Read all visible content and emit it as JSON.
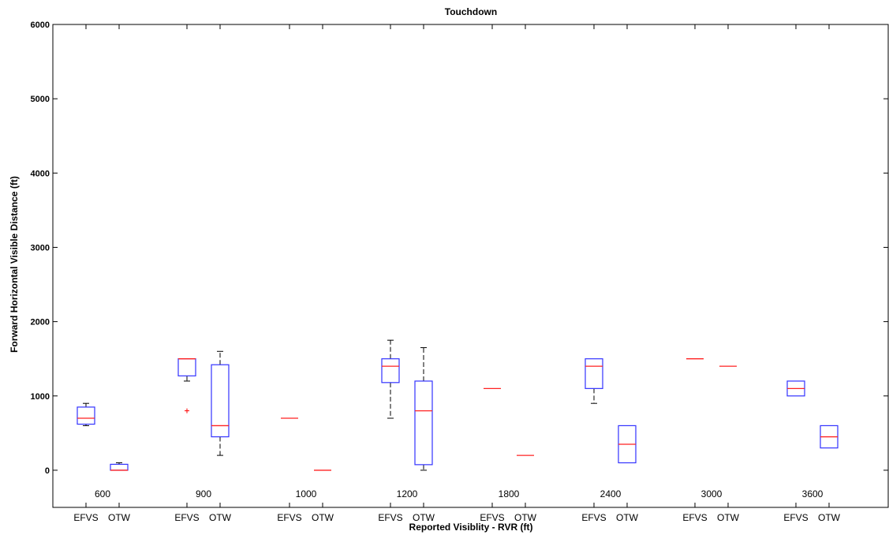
{
  "chart_data": {
    "type": "boxplot",
    "title": "Touchdown",
    "xlabel": "Reported Visiblity - RVR (ft)",
    "ylabel": "Forward Horizontal Visible Distance (ft)",
    "ylim": [
      -500,
      6000
    ],
    "yticks": [
      0,
      1000,
      2000,
      3000,
      4000,
      5000,
      6000
    ],
    "grid": false,
    "groups": [
      "600",
      "900",
      "1000",
      "1200",
      "1800",
      "2400",
      "3000",
      "3600"
    ],
    "subcategories": [
      "EFVS",
      "OTW"
    ],
    "colors": {
      "box": "#3333ff",
      "median": "#ff2222",
      "whisker": "#000000",
      "outlier": "#ff0000"
    },
    "boxes": [
      {
        "group": "600",
        "sub": "EFVS",
        "lower_whisker": 600,
        "q1": 620,
        "median": 700,
        "q3": 850,
        "upper_whisker": 900,
        "outliers": []
      },
      {
        "group": "600",
        "sub": "OTW",
        "lower_whisker": 0,
        "q1": 0,
        "median": 0,
        "q3": 80,
        "upper_whisker": 100,
        "outliers": []
      },
      {
        "group": "900",
        "sub": "EFVS",
        "lower_whisker": 1200,
        "q1": 1270,
        "median": 1500,
        "q3": 1500,
        "upper_whisker": 1500,
        "outliers": [
          800
        ]
      },
      {
        "group": "900",
        "sub": "OTW",
        "lower_whisker": 200,
        "q1": 450,
        "median": 600,
        "q3": 1420,
        "upper_whisker": 1600,
        "outliers": []
      },
      {
        "group": "1000",
        "sub": "EFVS",
        "lower_whisker": 700,
        "q1": 700,
        "median": 700,
        "q3": 700,
        "upper_whisker": 700,
        "outliers": []
      },
      {
        "group": "1000",
        "sub": "OTW",
        "lower_whisker": 0,
        "q1": 0,
        "median": 0,
        "q3": 0,
        "upper_whisker": 0,
        "outliers": []
      },
      {
        "group": "1200",
        "sub": "EFVS",
        "lower_whisker": 700,
        "q1": 1180,
        "median": 1400,
        "q3": 1500,
        "upper_whisker": 1750,
        "outliers": []
      },
      {
        "group": "1200",
        "sub": "OTW",
        "lower_whisker": 0,
        "q1": 75,
        "median": 800,
        "q3": 1200,
        "upper_whisker": 1650,
        "outliers": []
      },
      {
        "group": "1800",
        "sub": "EFVS",
        "lower_whisker": 1100,
        "q1": 1100,
        "median": 1100,
        "q3": 1100,
        "upper_whisker": 1100,
        "outliers": []
      },
      {
        "group": "1800",
        "sub": "OTW",
        "lower_whisker": 200,
        "q1": 200,
        "median": 200,
        "q3": 200,
        "upper_whisker": 200,
        "outliers": []
      },
      {
        "group": "2400",
        "sub": "EFVS",
        "lower_whisker": 900,
        "q1": 1100,
        "median": 1400,
        "q3": 1500,
        "upper_whisker": 1500,
        "outliers": []
      },
      {
        "group": "2400",
        "sub": "OTW",
        "lower_whisker": 100,
        "q1": 100,
        "median": 350,
        "q3": 600,
        "upper_whisker": 600,
        "outliers": []
      },
      {
        "group": "3000",
        "sub": "EFVS",
        "lower_whisker": 1500,
        "q1": 1500,
        "median": 1500,
        "q3": 1500,
        "upper_whisker": 1500,
        "outliers": []
      },
      {
        "group": "3000",
        "sub": "OTW",
        "lower_whisker": 1400,
        "q1": 1400,
        "median": 1400,
        "q3": 1400,
        "upper_whisker": 1400,
        "outliers": []
      },
      {
        "group": "3600",
        "sub": "EFVS",
        "lower_whisker": 1000,
        "q1": 1000,
        "median": 1100,
        "q3": 1200,
        "upper_whisker": 1200,
        "outliers": []
      },
      {
        "group": "3600",
        "sub": "OTW",
        "lower_whisker": 300,
        "q1": 300,
        "median": 450,
        "q3": 600,
        "upper_whisker": 600,
        "outliers": []
      }
    ]
  }
}
